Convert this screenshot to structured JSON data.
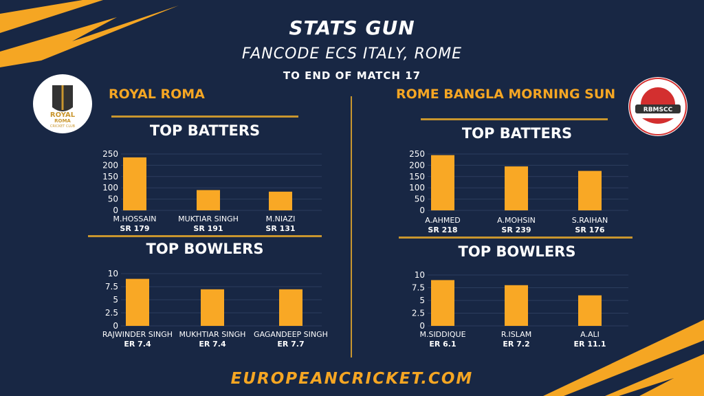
{
  "header": {
    "title": "STATS GUN",
    "subtitle": "FANCODE ECS ITALY, ROME",
    "note": "TO END OF MATCH 17"
  },
  "teams": {
    "left": {
      "name": "ROYAL ROMA",
      "logo_text": "ROYAL ROMA",
      "logo_subtext": "CRICKET CLUB"
    },
    "right": {
      "name": "ROME BANGLA MORNING SUN",
      "logo_text": "RBMSCC"
    }
  },
  "section_titles": {
    "batters": "TOP BATTERS",
    "bowlers": "TOP BOWLERS"
  },
  "footer": {
    "site": "EUROPEANCRICKET.COM"
  },
  "colors": {
    "background": "#182744",
    "accent": "#f5a623",
    "bar": "#f9a825"
  },
  "chart_data": [
    {
      "id": "left_batters",
      "type": "bar",
      "ylim": [
        0,
        250
      ],
      "yticks": [
        0,
        50,
        100,
        150,
        200,
        250
      ],
      "categories": [
        "M.HOSSAIN",
        "MUKTIAR SINGH",
        "M.NIAZI"
      ],
      "sublabels": [
        "SR 179",
        "SR 191",
        "SR 131"
      ],
      "values": [
        235,
        90,
        83
      ]
    },
    {
      "id": "left_bowlers",
      "type": "bar",
      "ylim": [
        0,
        10
      ],
      "yticks": [
        0,
        2.5,
        5,
        7.5,
        10
      ],
      "categories": [
        "RAJWINDER SINGH",
        "MUKHTIAR SINGH",
        "GAGANDEEP SINGH"
      ],
      "sublabels": [
        "ER 7.4",
        "ER 7.4",
        "ER 7.7"
      ],
      "values": [
        9,
        7,
        7
      ]
    },
    {
      "id": "right_batters",
      "type": "bar",
      "ylim": [
        0,
        250
      ],
      "yticks": [
        0,
        50,
        100,
        150,
        200,
        250
      ],
      "categories": [
        "A.AHMED",
        "A.MOHSIN",
        "S.RAIHAN"
      ],
      "sublabels": [
        "SR 218",
        "SR 239",
        "SR 176"
      ],
      "values": [
        245,
        195,
        175
      ]
    },
    {
      "id": "right_bowlers",
      "type": "bar",
      "ylim": [
        0,
        10
      ],
      "yticks": [
        0,
        2.5,
        5,
        7.5,
        10
      ],
      "categories": [
        "M.SIDDIQUE",
        "R.ISLAM",
        "A.ALI"
      ],
      "sublabels": [
        "ER 6.1",
        "ER 7.2",
        "ER 11.1"
      ],
      "values": [
        9,
        8,
        6
      ]
    }
  ]
}
